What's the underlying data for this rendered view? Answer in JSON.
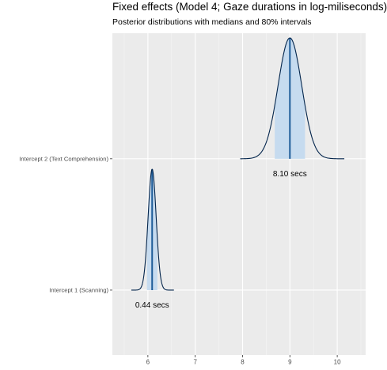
{
  "chart_data": {
    "type": "ridgeline-density",
    "title": "Fixed effects (Model 4; Gaze durations in log-miliseconds)",
    "subtitle": "Posterior distributions with medians and 80% intervals",
    "xlabel": "",
    "ylabel": "",
    "xlim": [
      5.25,
      10.6
    ],
    "x_ticks": [
      6,
      7,
      8,
      9,
      10
    ],
    "x_tick_labels": [
      "6",
      "7",
      "8",
      "9",
      "10"
    ],
    "grid": true,
    "legend": "none",
    "series": [
      {
        "name": "Intercept 1 (Scanning)",
        "median": 6.09,
        "interval_80": [
          5.98,
          6.2
        ],
        "sd": 0.085,
        "range": [
          5.65,
          6.55
        ],
        "annotation": "0.44 secs"
      },
      {
        "name": "Intercept 2 (Text Comprehension)",
        "median": 9.0,
        "interval_80": [
          8.68,
          9.32
        ],
        "sd": 0.25,
        "range": [
          7.95,
          10.15
        ],
        "annotation": "8.10 secs"
      }
    ],
    "colors": {
      "panel": "#ebebeb",
      "grid": "#ffffff",
      "outline": "#03254c",
      "interval_fill": "#c6dbef",
      "median_line": "#1f5d99"
    }
  }
}
